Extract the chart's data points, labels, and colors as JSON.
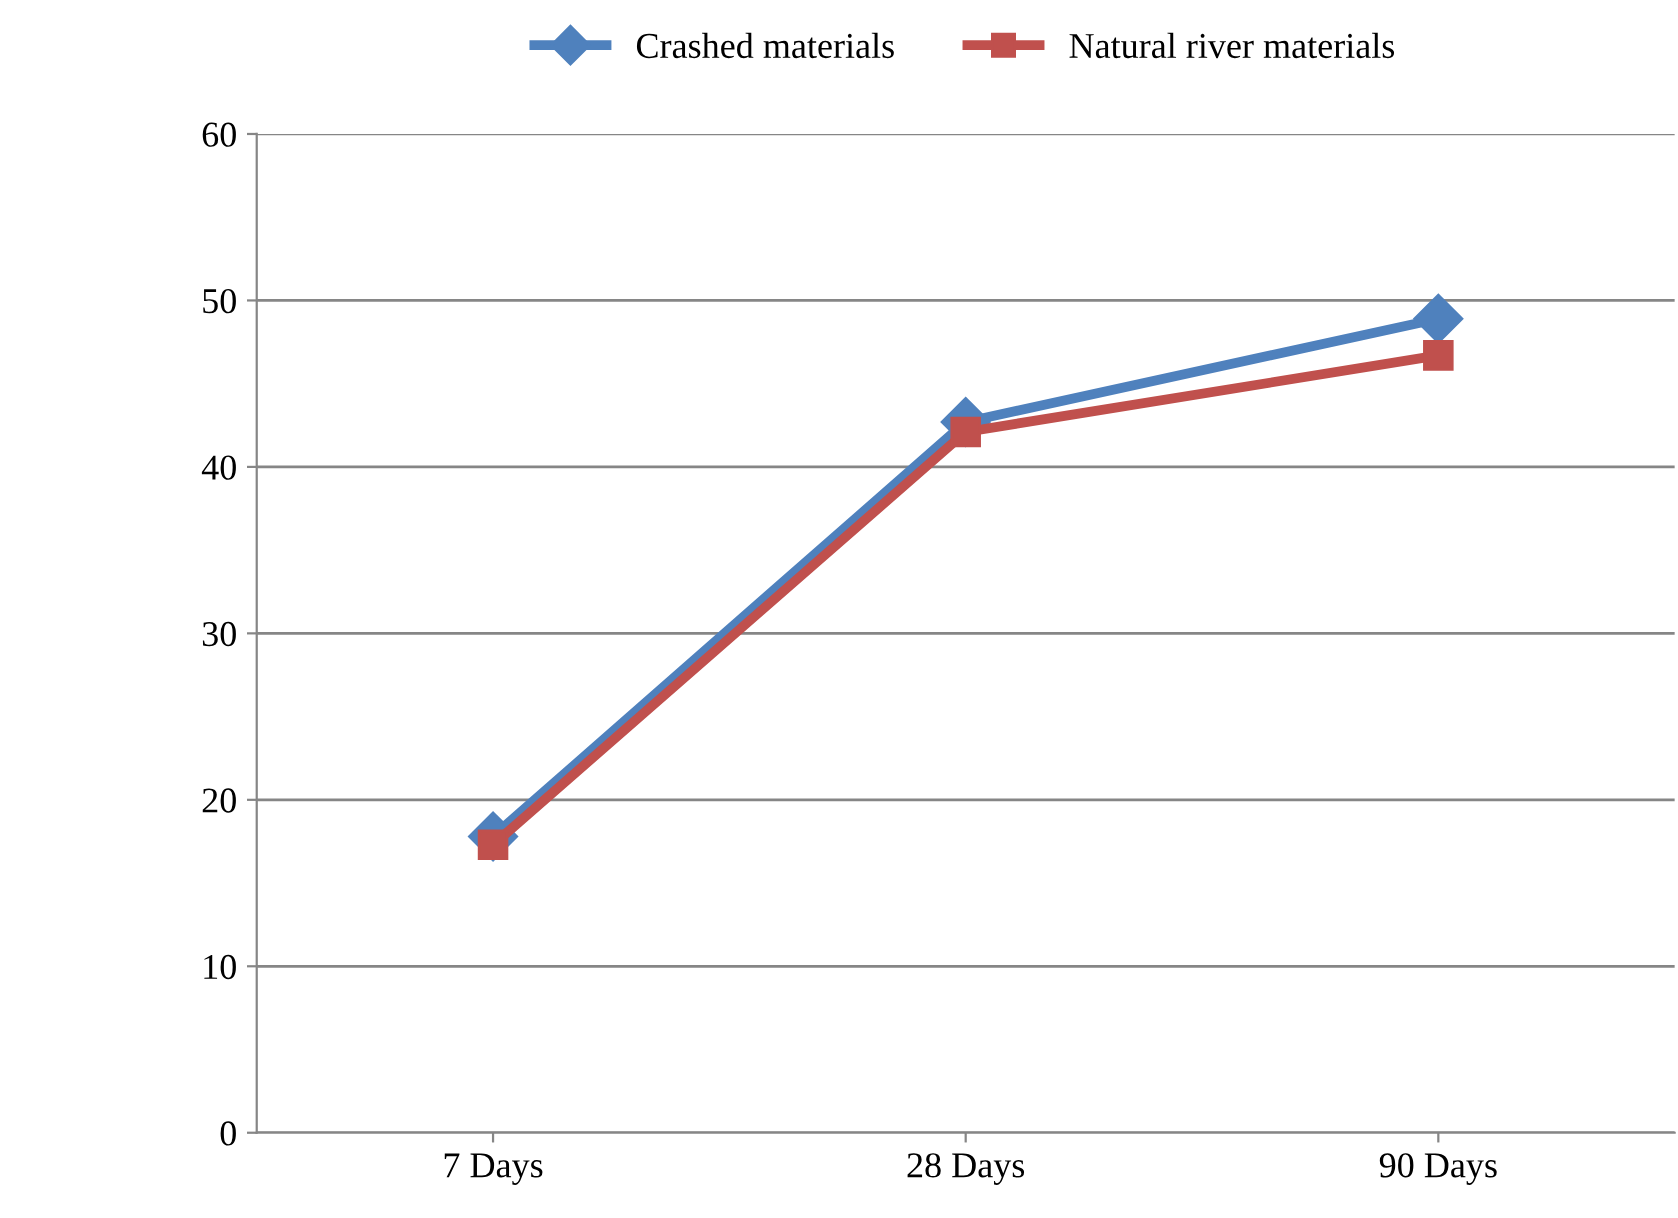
{
  "chart_data": {
    "type": "line",
    "categories": [
      "7 Days",
      "28 Days",
      "90 Days"
    ],
    "series": [
      {
        "name": "Crashed materials",
        "color": "#4f81bd",
        "marker": "diamond",
        "values": [
          17.8,
          42.7,
          48.9
        ]
      },
      {
        "name": "Natural river materials",
        "color": "#c0504d",
        "marker": "square",
        "values": [
          17.3,
          42.1,
          46.7
        ]
      }
    ],
    "ylim": [
      0,
      60
    ],
    "yticks": [
      0,
      10,
      20,
      30,
      40,
      50,
      60
    ],
    "grid": "y",
    "legend": "top",
    "line_style": "solid"
  }
}
